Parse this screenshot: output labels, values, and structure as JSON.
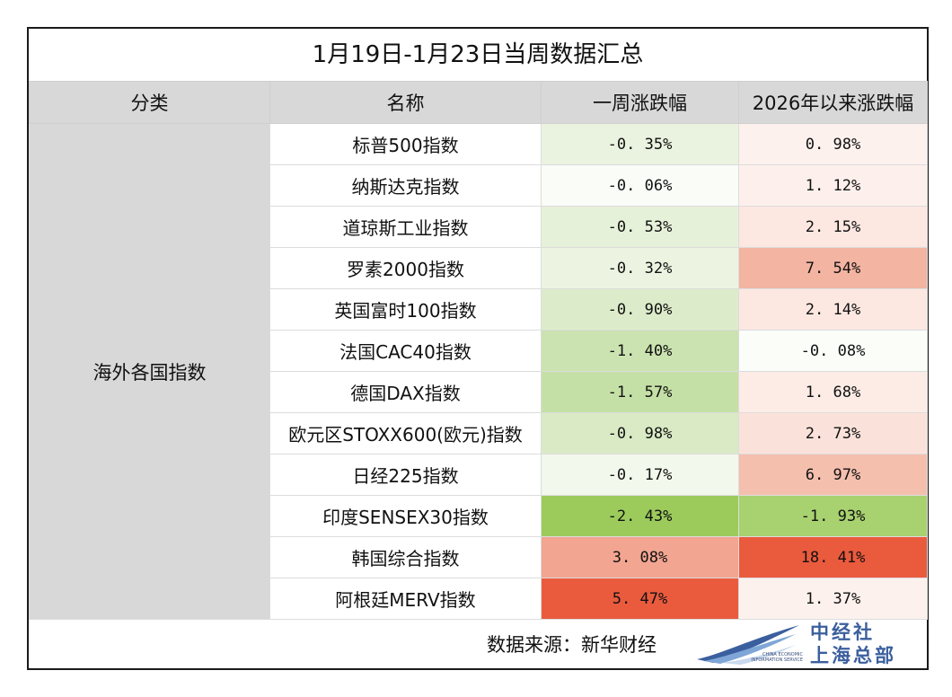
{
  "title": "1月19日-1月23日当周数据汇总",
  "headers": {
    "category": "分类",
    "name": "名称",
    "week_change": "一周涨跌幅",
    "ytd_change": "2026年以来涨跌幅"
  },
  "category": "海外各国指数",
  "rows": [
    {
      "name": "标普500指数",
      "week": "-0. 35%",
      "ytd": "0. 98%",
      "week_color": "#eaf3df",
      "ytd_color": "#fdf1ee"
    },
    {
      "name": "纳斯达克指数",
      "week": "-0. 06%",
      "ytd": "1. 12%",
      "week_color": "#fafcf8",
      "ytd_color": "#fdf0ec"
    },
    {
      "name": "道琼斯工业指数",
      "week": "-0. 53%",
      "ytd": "2. 15%",
      "week_color": "#e6f1d9",
      "ytd_color": "#fce7e1"
    },
    {
      "name": "罗素2000指数",
      "week": "-0. 32%",
      "ytd": "7. 54%",
      "week_color": "#ecf4e1",
      "ytd_color": "#f3b4a2"
    },
    {
      "name": "英国富时100指数",
      "week": "-0. 90%",
      "ytd": "2. 14%",
      "week_color": "#dcecca",
      "ytd_color": "#fce8e1"
    },
    {
      "name": "法国CAC40指数",
      "week": "-1. 40%",
      "ytd": "-0. 08%",
      "week_color": "#cbe3b0",
      "ytd_color": "#fbfdf9"
    },
    {
      "name": "德国DAX指数",
      "week": "-1. 57%",
      "ytd": "1. 68%",
      "week_color": "#c5e0a6",
      "ytd_color": "#fdece6"
    },
    {
      "name": "欧元区STOXX600(欧元)指数",
      "week": "-0. 98%",
      "ytd": "2. 73%",
      "week_color": "#d9eac5",
      "ytd_color": "#fae2da"
    },
    {
      "name": "日经225指数",
      "week": "-0. 17%",
      "ytd": "6. 97%",
      "week_color": "#f2f8eb",
      "ytd_color": "#f5bfae"
    },
    {
      "name": "印度SENSEX30指数",
      "week": "-2. 43%",
      "ytd": "-1. 93%",
      "week_color": "#9ccb5c",
      "ytd_color": "#a8d16f"
    },
    {
      "name": "韩国综合指数",
      "week": "3. 08%",
      "ytd": "18. 41%",
      "week_color": "#f2a591",
      "ytd_color": "#ea5a3d"
    },
    {
      "name": "阿根廷MERV指数",
      "week": "5. 47%",
      "ytd": "1. 37%",
      "week_color": "#ea5b3e",
      "ytd_color": "#fdf1ed"
    }
  ],
  "footer": {
    "source": "数据来源：新华财经",
    "logo_line1": "中经社",
    "logo_line2": "上海总部",
    "logo_en_line1": "CHINA ECONOMIC",
    "logo_en_line2": "INFORMATION SERVICE",
    "logo_blue": "#3b5f9e"
  }
}
